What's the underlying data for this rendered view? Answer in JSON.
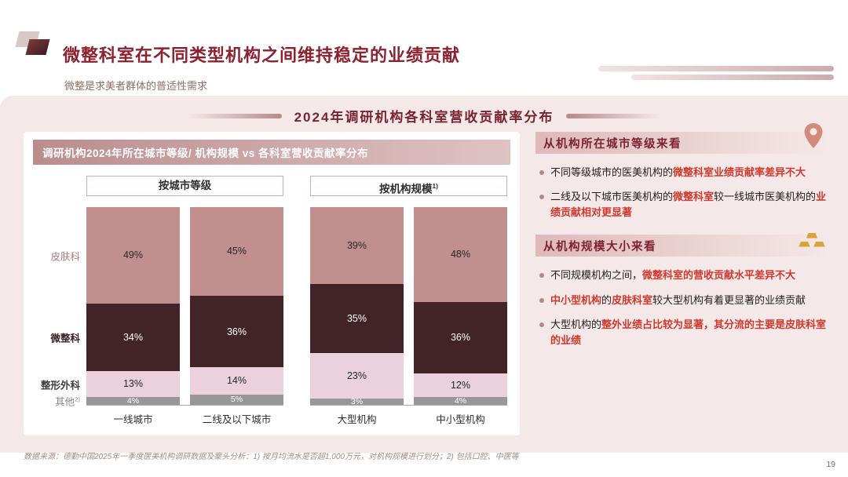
{
  "header": {
    "title": "微整科室在不同类型机构之间维持稳定的业绩贡献",
    "subtitle": "微整是求美者群体的普适性需求"
  },
  "banner": {
    "text": "2024年调研机构各科室营收贡献率分布"
  },
  "chart": {
    "header": "调研机构2024年所在城市等级/ 机构规模 vs 各科室营收贡献率分布"
  },
  "chart_data": {
    "type": "bar",
    "subtype": "stacked-percent",
    "title": "调研机构2024年所在城市等级/ 机构规模 vs 各科室营收贡献率分布",
    "unit": "%",
    "ylim": [
      0,
      100
    ],
    "legend_position": "left-row-labels",
    "groups": [
      {
        "label": "按城市等级",
        "sup": "",
        "categories": [
          "一线城市",
          "二线及以下城市"
        ]
      },
      {
        "label": "按机构规模",
        "sup": "1)",
        "categories": [
          "大型机构",
          "中小型机构"
        ]
      }
    ],
    "categories": [
      "一线城市",
      "二线及以下城市",
      "大型机构",
      "中小型机构"
    ],
    "series": [
      {
        "name": "皮肤科",
        "sup": "",
        "color": "#c28f8f",
        "label_color": "#262626",
        "row_label_color": "#b47a7a",
        "row_label_bold": false,
        "values": [
          49,
          45,
          39,
          48
        ]
      },
      {
        "name": "微整科",
        "sup": "",
        "color": "#422428",
        "label_color": "#ffffff",
        "row_label_color": "#3a2024",
        "row_label_bold": true,
        "values": [
          34,
          36,
          35,
          36
        ]
      },
      {
        "name": "整形外科",
        "sup": "",
        "color": "#ead1dc",
        "label_color": "#262626",
        "row_label_color": "#3d3d3d",
        "row_label_bold": true,
        "values": [
          13,
          14,
          23,
          12
        ]
      },
      {
        "name": "其他",
        "sup": "2)",
        "color": "#979797",
        "label_color": "#ffffff",
        "row_label_color": "#8a8a8a",
        "row_label_bold": false,
        "values": [
          4,
          5,
          3,
          4
        ]
      }
    ]
  },
  "insights": {
    "sections": [
      {
        "title": "从机构所在城市等级来看",
        "icon": "location-pin-icon",
        "bullets": [
          [
            {
              "t": "不同等级城市的医美机构的",
              "hl": false
            },
            {
              "t": "微整科室业绩贡献率差异不大",
              "hl": true
            }
          ],
          [
            {
              "t": "二线及以下城市医美机构的",
              "hl": false
            },
            {
              "t": "微整科室",
              "hl": true
            },
            {
              "t": "较一线城市医美机构的",
              "hl": false
            },
            {
              "t": "业绩贡献相对更显著",
              "hl": true
            }
          ]
        ]
      },
      {
        "title": "从机构规模大小来看",
        "icon": "gold-ingots-icon",
        "bullets": [
          [
            {
              "t": "不同规模机构之间，",
              "hl": false
            },
            {
              "t": "微整科室的营收贡献水平差异不大",
              "hl": true
            }
          ],
          [
            {
              "t": "中小型机构",
              "hl": true
            },
            {
              "t": "的",
              "hl": false
            },
            {
              "t": "皮肤科室",
              "hl": true
            },
            {
              "t": "较大型机构有着更显著的业绩贡献",
              "hl": false
            }
          ],
          [
            {
              "t": "大型机构的",
              "hl": false
            },
            {
              "t": "整外业绩占比较为显著，其分流的主要是皮肤科室的业绩",
              "hl": true
            }
          ]
        ]
      }
    ]
  },
  "footer": {
    "source": "数据来源：德勤中国2025年一季度医美机构调研数据及案头分析：1) 按月均流水是否超1,000万元，对机构规模进行划分；2) 包括口腔、中医等",
    "page_number": "19"
  },
  "colors": {
    "title": "#8c2130",
    "highlight_red": "#d2382c",
    "content_background": "#f5e8e8",
    "header_bar_gradient": [
      "#bb8c8c",
      "#dfc3c3"
    ],
    "section_header_gradient": [
      "#dfb9b9",
      "#f5e8e8"
    ]
  }
}
